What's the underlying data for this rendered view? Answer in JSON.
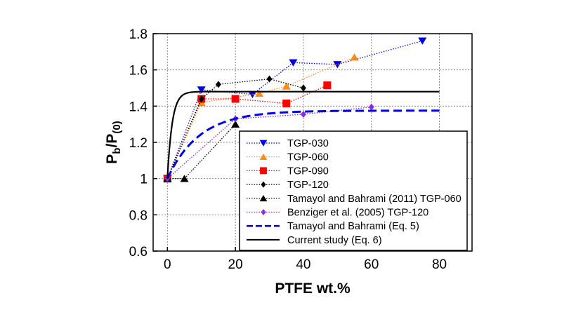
{
  "chart_data": {
    "type": "line",
    "xlabel": "PTFE wt.%",
    "ylabel": {
      "main": "P",
      "sub1": "b",
      "slash": "/P",
      "sub2": "(0)"
    },
    "xlim": [
      -4.2,
      89.6
    ],
    "ylim": [
      0.6,
      1.8
    ],
    "xticks": [
      0,
      20,
      40,
      60,
      80
    ],
    "yticks": [
      0.6,
      0.8,
      1,
      1.2,
      1.4,
      1.6,
      1.8
    ],
    "grid": true,
    "legend_position": "bottom-right",
    "series": [
      {
        "name": "TGP-030",
        "color": "#0000ee",
        "marker": "triangle-down",
        "style": "dotted",
        "x": [
          0,
          10,
          25,
          37,
          50,
          75
        ],
        "y": [
          1.0,
          1.49,
          1.465,
          1.64,
          1.63,
          1.76
        ]
      },
      {
        "name": "TGP-060",
        "color": "#ff8c1a",
        "marker": "triangle-up",
        "style": "dotted",
        "x": [
          0,
          10,
          27,
          35,
          55
        ],
        "y": [
          1.0,
          1.42,
          1.47,
          1.51,
          1.67
        ]
      },
      {
        "name": "TGP-090",
        "color": "#ff0000",
        "marker": "square",
        "style": "dotted",
        "x": [
          0,
          10,
          20,
          35,
          47
        ],
        "y": [
          1.0,
          1.44,
          1.44,
          1.415,
          1.515
        ]
      },
      {
        "name": "TGP-120",
        "color": "#000000",
        "marker": "diamond",
        "style": "dotted",
        "x": [
          0,
          10,
          15,
          30,
          40
        ],
        "y": [
          1.0,
          1.44,
          1.52,
          1.55,
          1.5
        ]
      },
      {
        "name": "Tamayol and Bahrami (2011) TGP-060",
        "color": "#000000",
        "marker": "triangle-up",
        "style": "dotted",
        "x": [
          0,
          5,
          20
        ],
        "y": [
          1.0,
          1.0,
          1.3
        ]
      },
      {
        "name": "Benziger et al. (2005) TGP-120",
        "color": "#8a2be2",
        "marker": "diamond",
        "style": "dotted",
        "x": [
          0,
          20,
          40,
          60
        ],
        "y": [
          1.0,
          1.33,
          1.355,
          1.395
        ]
      },
      {
        "name": "Tamayol and Bahrami (Eq. 5)",
        "color": "#0000ee",
        "marker": "none",
        "style": "dashed",
        "curve": {
          "asymptote": 1.375,
          "x_range": [
            0,
            80
          ]
        }
      },
      {
        "name": "Current study (Eq. 6)",
        "color": "#000000",
        "marker": "none",
        "style": "solid",
        "curve": {
          "asymptote": 1.48,
          "x_range": [
            0,
            80
          ]
        }
      }
    ]
  }
}
